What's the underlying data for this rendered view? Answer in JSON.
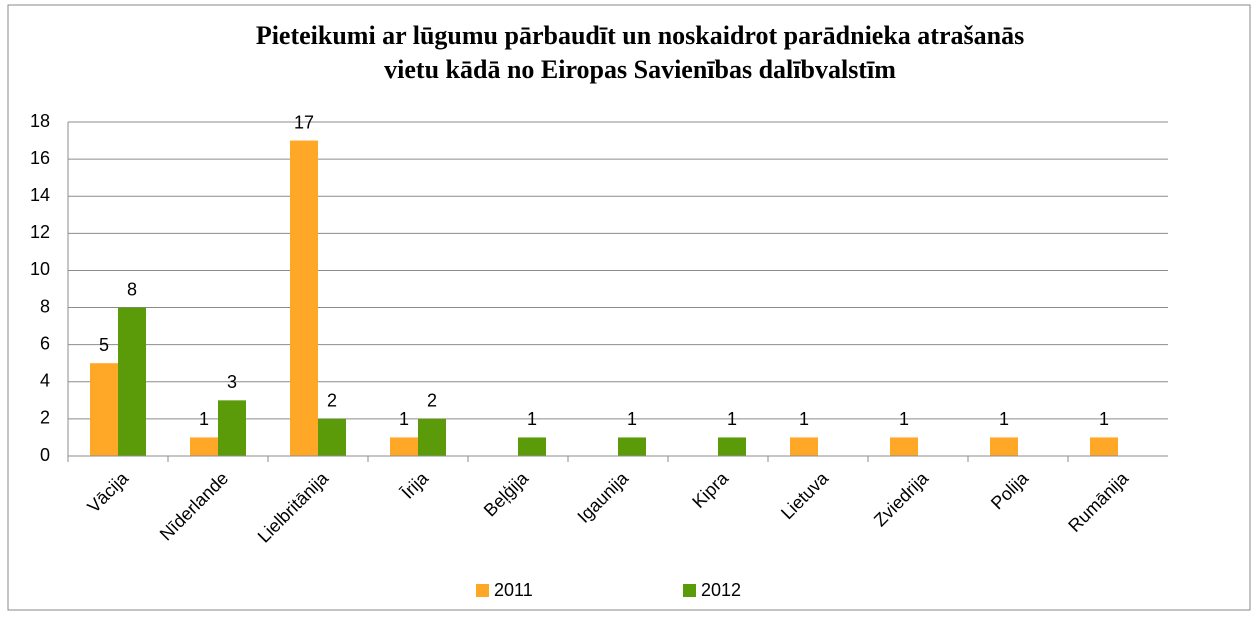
{
  "chart_data": {
    "type": "bar",
    "title": [
      "Pieteikumi ar lūgumu pārbaudīt un noskaidrot parādnieka atrašanās",
      "vietu kādā no Eiropas Savienības dalībvalstīm"
    ],
    "categories": [
      "Vācija",
      "Nīderlande",
      "Lielbritānija",
      "Īrija",
      "Beļģija",
      "Igaunija",
      "Kipra",
      "Lietuva",
      "Zviedrija",
      "Polija",
      "Rumānija"
    ],
    "series": [
      {
        "name": "2011",
        "color": "#ffa726",
        "values": [
          5,
          1,
          17,
          1,
          null,
          null,
          null,
          1,
          1,
          1,
          1
        ]
      },
      {
        "name": "2012",
        "color": "#5b9b0a",
        "values": [
          8,
          3,
          2,
          2,
          1,
          1,
          1,
          null,
          null,
          null,
          null
        ]
      }
    ],
    "ylim": [
      0,
      18
    ],
    "yticks": [
      0,
      2,
      4,
      6,
      8,
      10,
      12,
      14,
      16,
      18
    ],
    "grid": true,
    "legend": "bottom"
  }
}
